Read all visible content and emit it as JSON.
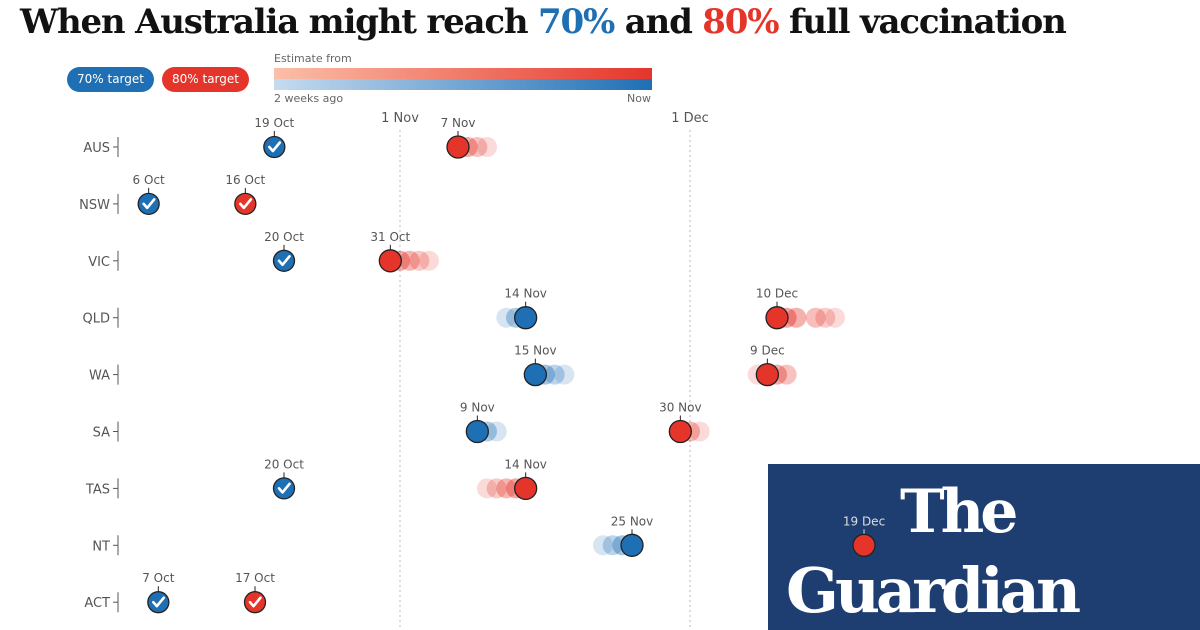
{
  "title": {
    "pre": "When Australia might reach ",
    "t70": "70%",
    "mid": " and ",
    "t80": "80%",
    "post": " full vaccination"
  },
  "legend": {
    "l70": "70% target",
    "l80": "80% target",
    "estimate_from": "Estimate from",
    "start": "2 weeks ago",
    "end": "Now"
  },
  "colors": {
    "c70": "#1f6fb5",
    "c80": "#e5352b",
    "logo_bg": "#1e3e72"
  },
  "logo": {
    "line1": "The",
    "line2": "Guardian"
  },
  "chart_data": {
    "type": "dot-timeline",
    "x_ticks": [
      {
        "label": "1 Nov",
        "date": "2021-11-01"
      },
      {
        "label": "1 Dec",
        "date": "2021-12-01"
      }
    ],
    "rows": [
      {
        "state": "AUS",
        "t70": {
          "label": "19 Oct",
          "date": "2021-10-19",
          "reached": true
        },
        "t80": {
          "label": "7 Nov",
          "date": "2021-11-07",
          "reached": false,
          "earlier_estimates": [
            "2021-11-08",
            "2021-11-09",
            "2021-11-10"
          ]
        }
      },
      {
        "state": "NSW",
        "t70": {
          "label": "6 Oct",
          "date": "2021-10-06",
          "reached": true
        },
        "t80": {
          "label": "16 Oct",
          "date": "2021-10-16",
          "reached": true
        }
      },
      {
        "state": "VIC",
        "t70": {
          "label": "20 Oct",
          "date": "2021-10-20",
          "reached": true
        },
        "t80": {
          "label": "31 Oct",
          "date": "2021-10-31",
          "reached": false,
          "earlier_estimates": [
            "2021-11-01",
            "2021-11-02",
            "2021-11-03",
            "2021-11-04"
          ]
        }
      },
      {
        "state": "QLD",
        "t70": {
          "label": "14 Nov",
          "date": "2021-11-14",
          "reached": false,
          "earlier_estimates": [
            "2021-11-13",
            "2021-11-12"
          ]
        },
        "t80": {
          "label": "10 Dec",
          "date": "2021-12-10",
          "reached": false,
          "earlier_estimates": [
            "2021-12-11",
            "2021-12-12",
            "2021-12-14",
            "2021-12-15",
            "2021-12-16"
          ]
        }
      },
      {
        "state": "WA",
        "t70": {
          "label": "15 Nov",
          "date": "2021-11-15",
          "reached": false,
          "earlier_estimates": [
            "2021-11-16",
            "2021-11-17",
            "2021-11-18"
          ]
        },
        "t80": {
          "label": "9 Dec",
          "date": "2021-12-09",
          "reached": false,
          "earlier_estimates": [
            "2021-12-10",
            "2021-12-11",
            "2021-12-08"
          ]
        }
      },
      {
        "state": "SA",
        "t70": {
          "label": "9 Nov",
          "date": "2021-11-09",
          "reached": false,
          "earlier_estimates": [
            "2021-11-10",
            "2021-11-11"
          ]
        },
        "t80": {
          "label": "30 Nov",
          "date": "2021-11-30",
          "reached": false,
          "earlier_estimates": [
            "2021-12-01",
            "2021-12-02"
          ]
        }
      },
      {
        "state": "TAS",
        "t70": {
          "label": "20 Oct",
          "date": "2021-10-20",
          "reached": true
        },
        "t80": {
          "label": "14 Nov",
          "date": "2021-11-14",
          "reached": false,
          "earlier_estimates": [
            "2021-11-13",
            "2021-11-12",
            "2021-11-11",
            "2021-11-10"
          ]
        }
      },
      {
        "state": "NT",
        "t70": {
          "label": "25 Nov",
          "date": "2021-11-25",
          "reached": false,
          "earlier_estimates": [
            "2021-11-24",
            "2021-11-23",
            "2021-11-22"
          ]
        },
        "t80": {
          "label": "19 Dec",
          "date": "2021-12-19",
          "reached": false
        }
      },
      {
        "state": "ACT",
        "t70": {
          "label": "7 Oct",
          "date": "2021-10-07",
          "reached": true
        },
        "t80": {
          "label": "17 Oct",
          "date": "2021-10-17",
          "reached": true
        }
      }
    ]
  }
}
